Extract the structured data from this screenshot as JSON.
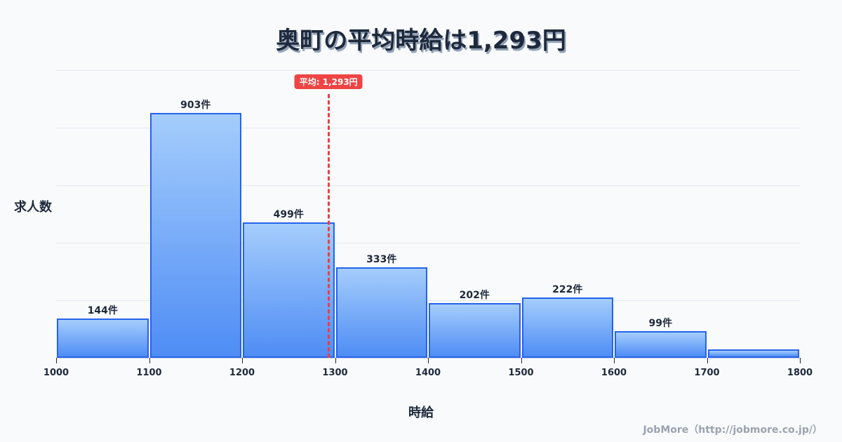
{
  "title": "奥町の平均時給は1,293円",
  "footer": "JobMore（http://jobmore.co.jp/）",
  "chart_data": {
    "type": "bar",
    "title": "奥町の平均時給は1,293円",
    "xlabel": "時給",
    "ylabel": "求人数",
    "categories": [
      "1000-1100",
      "1100-1200",
      "1200-1300",
      "1300-1400",
      "1400-1500",
      "1500-1600",
      "1600-1700",
      "1700-1800"
    ],
    "x_ticks": [
      "1000",
      "1100",
      "1200",
      "1300",
      "1400",
      "1500",
      "1600",
      "1700",
      "1800"
    ],
    "values": [
      144,
      903,
      499,
      333,
      202,
      222,
      99,
      31
    ],
    "labels": [
      "144件",
      "903件",
      "499件",
      "333件",
      "202件",
      "222件",
      "99件",
      ""
    ],
    "mean": 1293,
    "mean_label": "平均: 1,293円",
    "ylim": [
      0,
      1060
    ],
    "grid": true,
    "colors": {
      "bar_border": "#2563eb",
      "bar_top": "#a5cdfc",
      "bar_bottom": "#4f8df5",
      "mean": "#ef4444"
    }
  }
}
